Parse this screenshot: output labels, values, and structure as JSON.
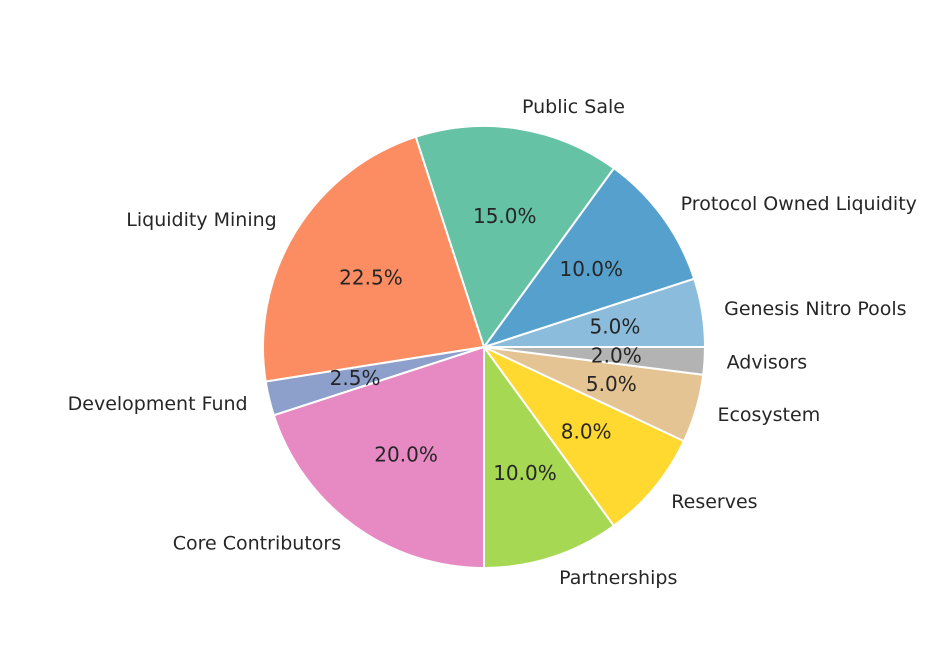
{
  "chart_data": {
    "type": "pie",
    "title": "",
    "start_angle_deg": 0,
    "direction": "counterclockwise",
    "slices": [
      {
        "label": "Genesis Nitro Pools",
        "value": 5.0,
        "pct_text": "5.0%",
        "color": "#8bbcdc"
      },
      {
        "label": "Protocol Owned Liquidity",
        "value": 10.0,
        "pct_text": "10.0%",
        "color": "#56a0ce"
      },
      {
        "label": "Public Sale",
        "value": 15.0,
        "pct_text": "15.0%",
        "color": "#66c2a5"
      },
      {
        "label": "Liquidity Mining",
        "value": 22.5,
        "pct_text": "22.5%",
        "color": "#fc8d62"
      },
      {
        "label": "Development Fund",
        "value": 2.5,
        "pct_text": "2.5%",
        "color": "#8da0cb"
      },
      {
        "label": "Core Contributors",
        "value": 20.0,
        "pct_text": "20.0%",
        "color": "#e78ac3"
      },
      {
        "label": "Partnerships",
        "value": 10.0,
        "pct_text": "10.0%",
        "color": "#a6d854"
      },
      {
        "label": "Reserves",
        "value": 8.0,
        "pct_text": "8.0%",
        "color": "#ffd92f"
      },
      {
        "label": "Ecosystem",
        "value": 5.0,
        "pct_text": "5.0%",
        "color": "#e5c494"
      },
      {
        "label": "Advisors",
        "value": 2.0,
        "pct_text": "2.0%",
        "color": "#b3b3b3"
      }
    ]
  }
}
